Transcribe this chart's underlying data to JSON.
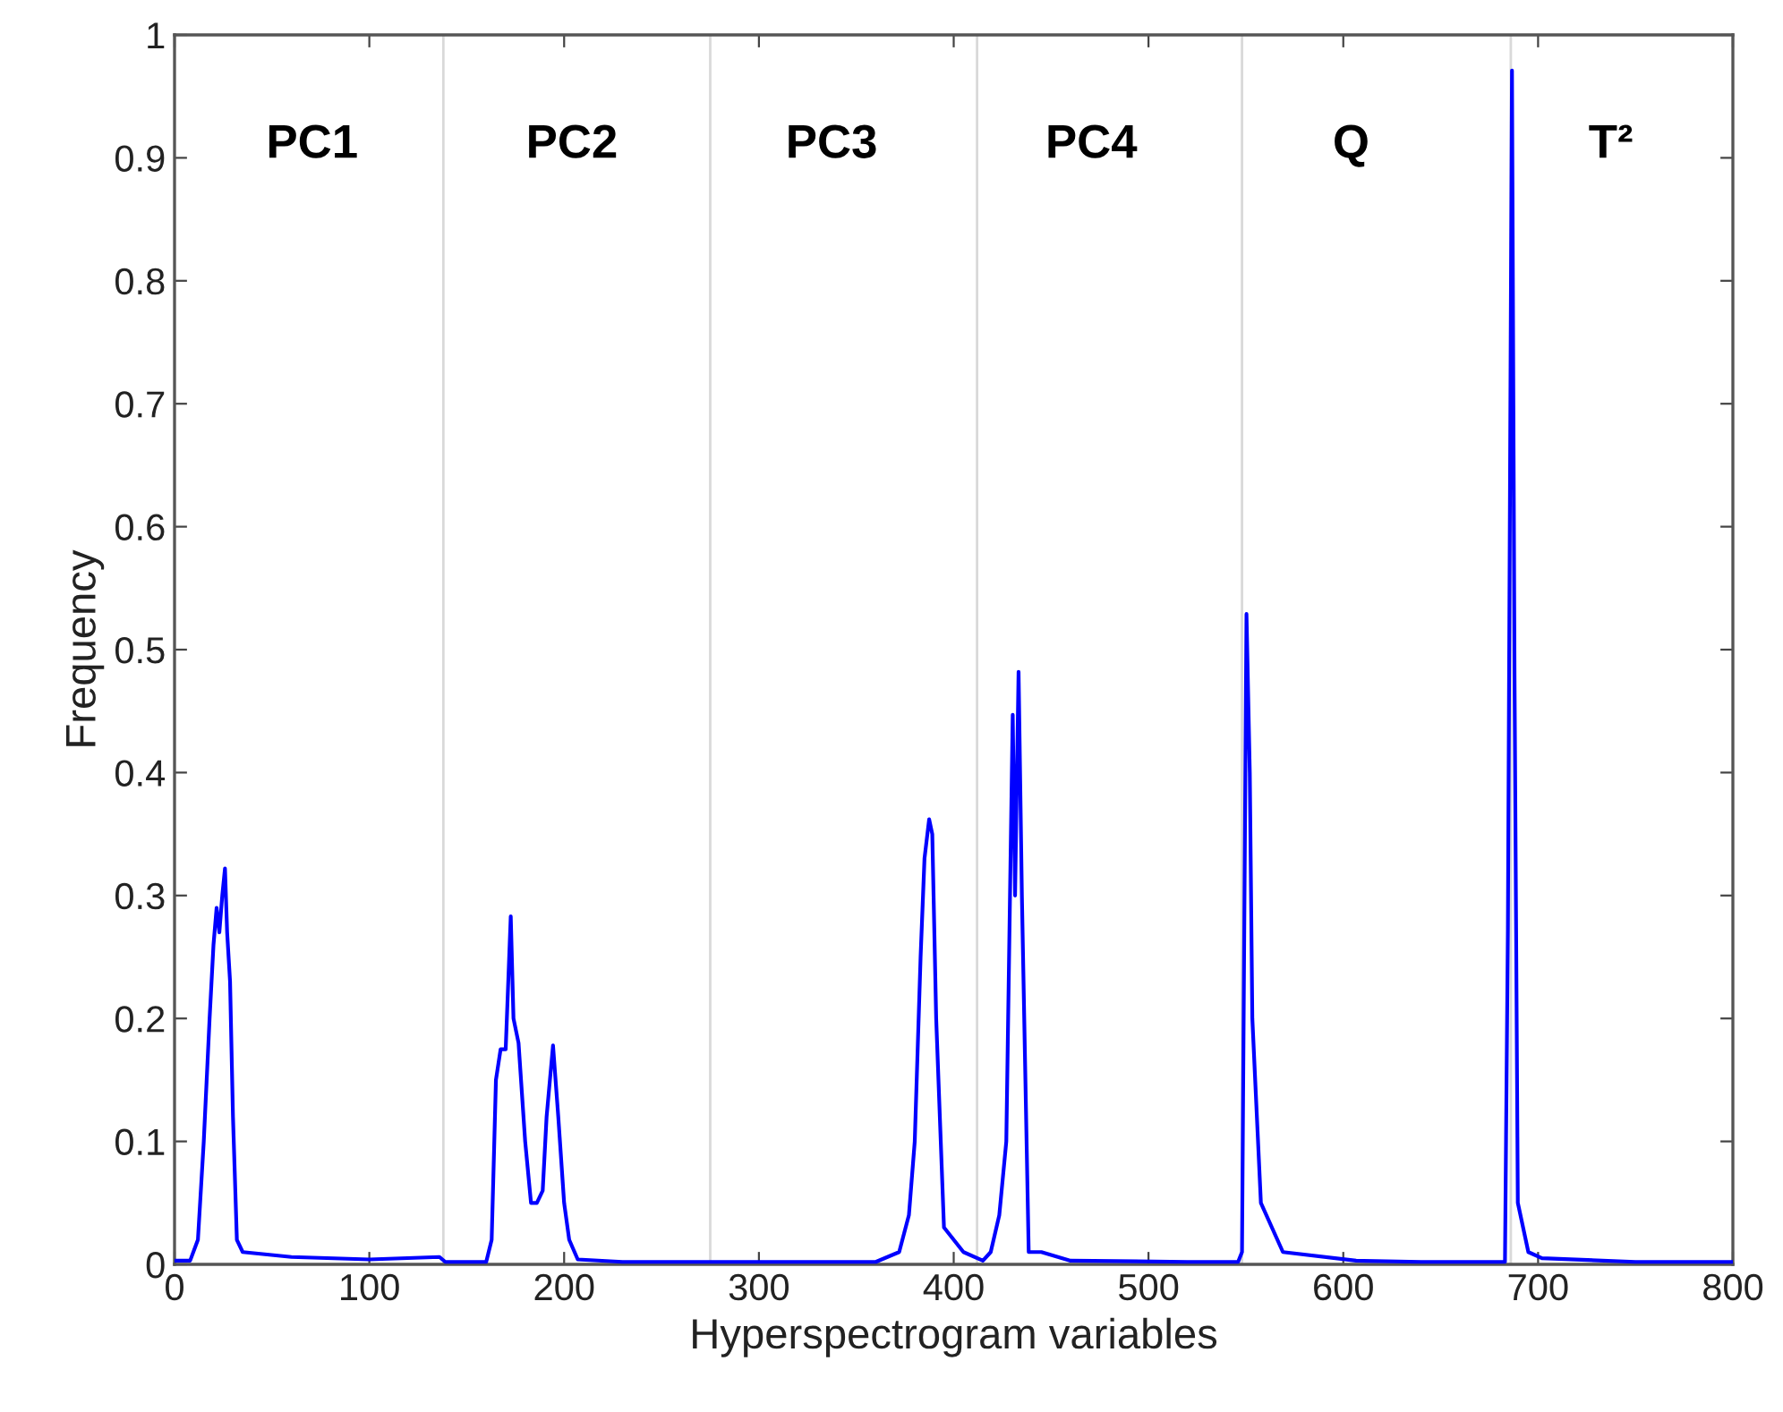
{
  "chart_data": {
    "type": "line",
    "xlabel": "Hyperspectrogram variables",
    "ylabel": "Frequency",
    "x": [
      0,
      8,
      12,
      15,
      18,
      20,
      21.6,
      23,
      24.5,
      25.9,
      27,
      28.5,
      30,
      32,
      35,
      60,
      100,
      136,
      139,
      160,
      162.8,
      165,
      167.4,
      170,
      172.6,
      174,
      176.6,
      180,
      183,
      186,
      189,
      191,
      194.3,
      197,
      200,
      202.6,
      207,
      230,
      300,
      360,
      372,
      377,
      380,
      383,
      385,
      387.4,
      389,
      391,
      395,
      405,
      415,
      419,
      423.4,
      427,
      430.3,
      431.5,
      433.3,
      435,
      438.5,
      445,
      460,
      520,
      546,
      548,
      550.3,
      552,
      553.3,
      557.7,
      569,
      606.6,
      640,
      683,
      684.5,
      686.6,
      687.9,
      689.6,
      695,
      702,
      750,
      800
    ],
    "series": [
      {
        "color": "#0000ff",
        "values": [
          0.003,
          0.003,
          0.02,
          0.1,
          0.2,
          0.26,
          0.29,
          0.27,
          0.3,
          0.322,
          0.27,
          0.23,
          0.12,
          0.02,
          0.01,
          0.006,
          0.004,
          0.006,
          0.002,
          0.002,
          0.02,
          0.15,
          0.175,
          0.175,
          0.283,
          0.2,
          0.18,
          0.1,
          0.05,
          0.05,
          0.06,
          0.12,
          0.178,
          0.12,
          0.05,
          0.02,
          0.004,
          0.002,
          0.002,
          0.002,
          0.01,
          0.04,
          0.1,
          0.25,
          0.33,
          0.362,
          0.35,
          0.2,
          0.03,
          0.01,
          0.003,
          0.01,
          0.04,
          0.1,
          0.447,
          0.3,
          0.482,
          0.3,
          0.01,
          0.01,
          0.003,
          0.002,
          0.002,
          0.01,
          0.529,
          0.4,
          0.2,
          0.05,
          0.01,
          0.003,
          0.002,
          0.002,
          0.273,
          0.971,
          0.48,
          0.05,
          0.01,
          0.005,
          0.002,
          0.002
        ]
      }
    ],
    "xlim": [
      0,
      800
    ],
    "xticks": [
      0,
      100,
      200,
      300,
      400,
      500,
      600,
      700,
      800
    ],
    "ylim": [
      0,
      1
    ],
    "yticks": [
      0,
      0.1,
      0.2,
      0.3,
      0.4,
      0.5,
      0.6,
      0.7,
      0.8,
      0.9,
      1
    ],
    "ref_lines": [
      {
        "axis": "x",
        "value": 138,
        "color": "#d9d9d9"
      },
      {
        "axis": "x",
        "value": 275,
        "color": "#d9d9d9"
      },
      {
        "axis": "x",
        "value": 412,
        "color": "#d9d9d9"
      },
      {
        "axis": "x",
        "value": 548,
        "color": "#d9d9d9"
      },
      {
        "axis": "x",
        "value": 686,
        "color": "#d9d9d9"
      }
    ],
    "annotations": [
      "PC1",
      "PC2",
      "PC3",
      "PC4",
      "Q",
      "T²"
    ],
    "grid": false,
    "legend": false,
    "marker": "none",
    "line_style": "solid"
  }
}
